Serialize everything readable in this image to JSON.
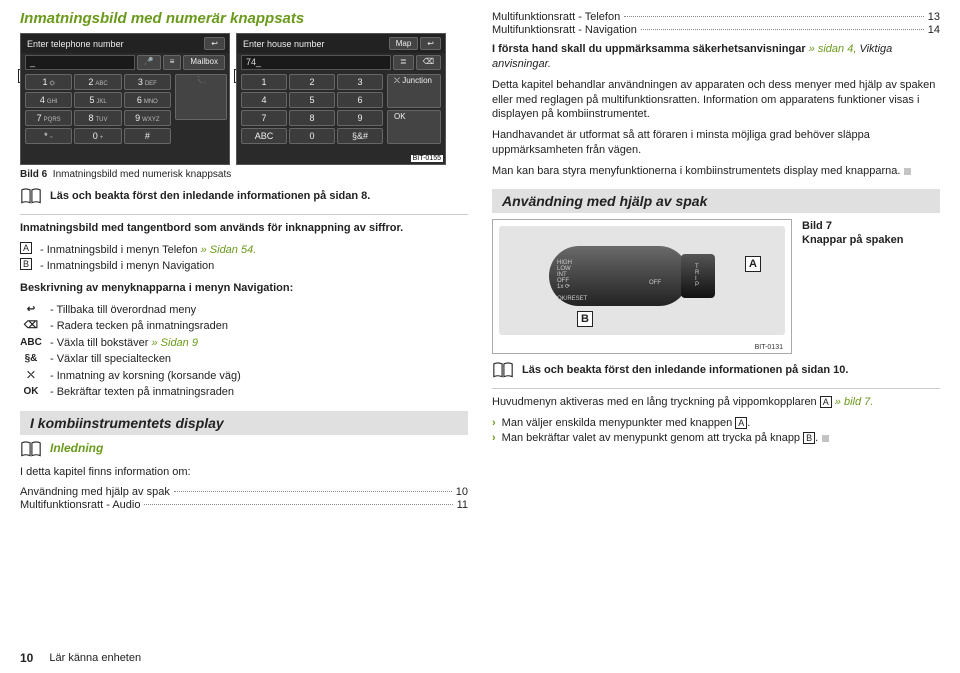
{
  "left": {
    "heading": "Inmatningsbild med numerär knappsats",
    "keypadA": {
      "title": "Enter telephone number",
      "topbtn": "↩",
      "field": "_",
      "mic": "🎤",
      "contacts_icon": "≡",
      "mailbox": "Mailbox",
      "keys": [
        {
          "n": "1",
          "s": "⏣"
        },
        {
          "n": "2",
          "s": "ABC"
        },
        {
          "n": "3",
          "s": "DEF"
        },
        {
          "n": "4",
          "s": "GHI"
        },
        {
          "n": "5",
          "s": "JKL"
        },
        {
          "n": "6",
          "s": "MNO"
        },
        {
          "n": "7",
          "s": "PQRS"
        },
        {
          "n": "8",
          "s": "TUV"
        },
        {
          "n": "9",
          "s": "WXYZ"
        },
        {
          "n": "*",
          "s": "~"
        },
        {
          "n": "0",
          "s": "+"
        },
        {
          "n": "#",
          "s": ""
        }
      ],
      "dial": "📞"
    },
    "keypadB": {
      "title": "Enter house number",
      "topbtn_map": "Map",
      "topbtn_back": "↩",
      "field": "74_",
      "list_icon": "≣",
      "del_icon": "⌫",
      "keys": [
        "1",
        "2",
        "3",
        "4",
        "5",
        "6",
        "7",
        "8",
        "9",
        "ABC",
        "0",
        "§&#"
      ],
      "junction": "Junction",
      "ok": "OK",
      "bit": "BIT-0155"
    },
    "caption_prefix": "Bild 6",
    "caption_text": "Inmatningsbild med numerisk knappsats",
    "read_first": "Läs och beakta först den inledande informationen på sidan 8.",
    "tangent_intro": "Inmatningsbild med tangentbord som används för inknappning av siffror.",
    "item_A_pre": "- Inmatningsbild i menyn Telefon ",
    "item_A_link": "» Sidan 54.",
    "item_B": "- Inmatningsbild i menyn Navigation",
    "nav_desc_heading": "Beskrivning av menyknapparna i menyn Navigation:",
    "nav_rows": [
      {
        "sym": "↩",
        "txt": "- Tillbaka till överordnad meny"
      },
      {
        "sym": "⌫",
        "txt": "- Radera tecken på inmatningsraden"
      },
      {
        "sym": "ABC",
        "txt_pre": "- Växla till bokstäver ",
        "link": "» Sidan 9"
      },
      {
        "sym": "§&",
        "txt": "- Växlar till specialtecken"
      },
      {
        "sym": "⛌",
        "txt": "- Inmatning av korsning (korsande väg)"
      },
      {
        "sym": "OK",
        "txt": "- Bekräftar texten på inmatningsraden"
      }
    ],
    "section_display": "I kombiinstrumentets display",
    "inledning": "Inledning",
    "inledning_intro": "I detta kapitel finns information om:",
    "toc": [
      {
        "label": "Användning med hjälp av spak",
        "page": "10"
      },
      {
        "label": "Multifunktionsratt - Audio",
        "page": "11"
      }
    ]
  },
  "right": {
    "toc_top": [
      {
        "label": "Multifunktionsratt - Telefon",
        "page": "13"
      },
      {
        "label": "Multifunktionsratt - Navigation",
        "page": "14"
      }
    ],
    "p1_pre": "I första hand skall du uppmärksamma säkerhetsanvisningar ",
    "p1_link": "» sidan 4, ",
    "p1_ital": "Viktiga anvisningar.",
    "p2": "Detta kapitel behandlar användningen av apparaten och dess menyer med hjälp av spaken eller med reglagen på multifunktionsratten. Information om apparatens funktioner visas i displayen på kombiinstrumentet.",
    "p3": "Handhavandet är utformat så att föraren i minsta möjliga grad behöver släppa uppmärksamheten från vägen.",
    "p4": "Man kan bara styra menyfunktionerna i kombiinstrumentets display med knapparna.",
    "section_spak": "Användning med hjälp av spak",
    "stalk": {
      "lines": [
        "HIGH",
        "LOW",
        "INT",
        "OFF",
        "1x ⟳"
      ],
      "ok": "OK/RESET",
      "trip_letters": [
        "T",
        "R",
        "I",
        "P"
      ],
      "off": "OFF",
      "badgeA": "A",
      "badgeB": "B",
      "bit": "BIT-0131"
    },
    "cap7_a": "Bild 7",
    "cap7_b": "Knappar på spaken",
    "read_first": "Läs och beakta först den inledande informationen på sidan 10.",
    "p5_pre": "Huvudmenyn aktiveras med en lång tryckning på vippomkopplaren ",
    "p5_A": "A",
    "p5_post": " » bild 7.",
    "chev1_pre": "Man väljer enskilda menypunkter med knappen ",
    "chev1_A": "A",
    "chev2_pre": "Man bekräftar valet av menypunkt genom att trycka på knapp ",
    "chev2_B": "B"
  },
  "footer": {
    "page": "10",
    "section": "Lär känna enheten"
  }
}
